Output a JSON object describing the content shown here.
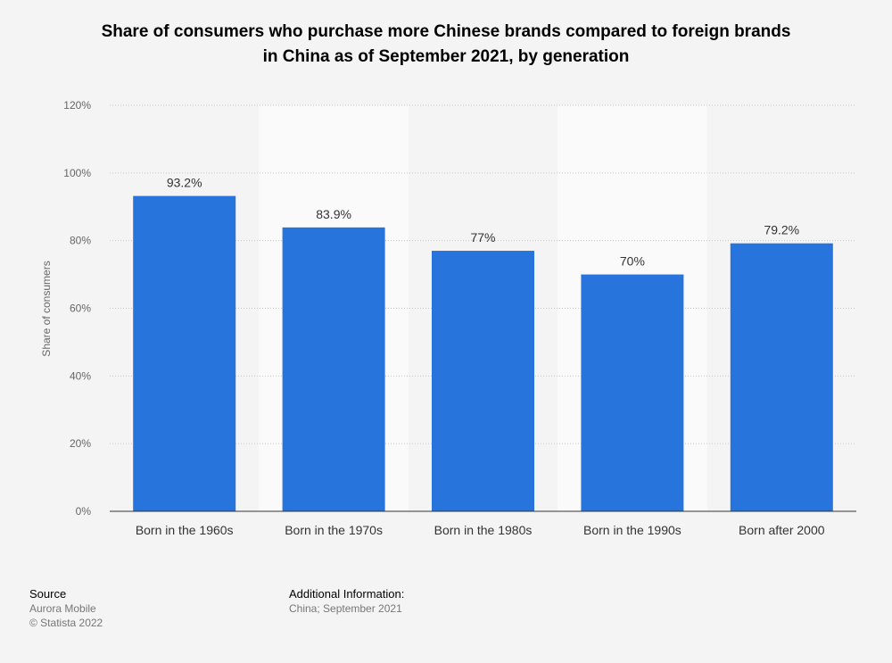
{
  "chart_data": {
    "type": "bar",
    "title_lines": [
      "Share of consumers who purchase more Chinese brands compared to foreign brands",
      "in China as of September 2021, by generation"
    ],
    "xlabel": "",
    "ylabel": "Share of consumers",
    "categories": [
      "Born in the 1960s",
      "Born in the 1970s",
      "Born in the 1980s",
      "Born in the 1990s",
      "Born after 2000"
    ],
    "values": [
      93.2,
      83.9,
      77,
      70,
      79.2
    ],
    "data_labels": [
      "93.2%",
      "83.9%",
      "77%",
      "70%",
      "79.2%"
    ],
    "ylim": [
      0,
      120
    ],
    "yticks": [
      0,
      20,
      40,
      60,
      80,
      100,
      120
    ],
    "ytick_labels": [
      "0%",
      "20%",
      "40%",
      "60%",
      "80%",
      "100%",
      "120%"
    ],
    "grid": true,
    "bar_color": "#2774dc"
  },
  "footer": {
    "source_heading": "Source",
    "source_name": "Aurora Mobile",
    "copyright": "© Statista 2022",
    "info_heading": "Additional Information:",
    "info_text": "China; September 2021"
  }
}
